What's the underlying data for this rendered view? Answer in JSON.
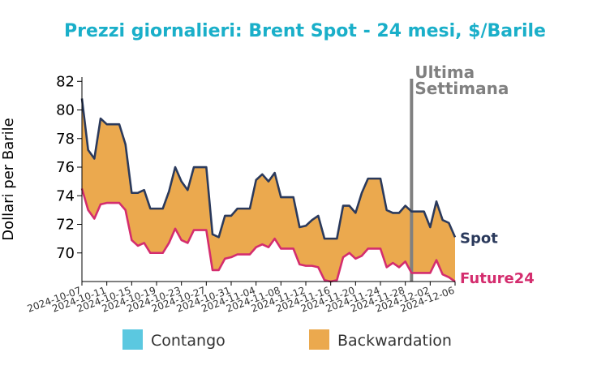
{
  "chart_data": {
    "type": "area",
    "title": "Prezzi giornalieri: Brent Spot - 24 mesi, $/Barile",
    "ylabel": "Dollari per Barile",
    "xlabel": "",
    "ylim": [
      68,
      82.3
    ],
    "yticks": [
      70,
      72,
      74,
      76,
      78,
      80,
      82
    ],
    "xticks": [
      "2024-10-07",
      "2024-10-11",
      "2024-10-15",
      "2024-10-19",
      "2024-10-23",
      "2024-10-27",
      "2024-10-31",
      "2024-11-04",
      "2024-11-08",
      "2024-11-12",
      "2024-11-16",
      "2024-11-20",
      "2024-11-24",
      "2024-11-28",
      "2024-12-02",
      "2024-12-06"
    ],
    "x_start": "2024-10-07",
    "x_end": "2024-12-06",
    "grid": false,
    "colors": {
      "title": "#1aafc9",
      "spot": "#2b3a5c",
      "future": "#d42d6e",
      "contango": "#5bc8e0",
      "backwardation": "#eba94e",
      "annotation_line": "#808080"
    },
    "annotation": {
      "date": "2024-11-29",
      "line1": "Ultima",
      "line2": "Settimana"
    },
    "series": [
      {
        "name": "Spot",
        "points": [
          [
            "2024-10-07",
            80.8
          ],
          [
            "2024-10-08",
            77.2
          ],
          [
            "2024-10-09",
            76.6
          ],
          [
            "2024-10-10",
            79.4
          ],
          [
            "2024-10-11",
            79.0
          ],
          [
            "2024-10-12",
            79.0
          ],
          [
            "2024-10-13",
            79.0
          ],
          [
            "2024-10-14",
            77.6
          ],
          [
            "2024-10-15",
            74.2
          ],
          [
            "2024-10-16",
            74.2
          ],
          [
            "2024-10-17",
            74.4
          ],
          [
            "2024-10-18",
            73.1
          ],
          [
            "2024-10-19",
            73.1
          ],
          [
            "2024-10-20",
            73.1
          ],
          [
            "2024-10-21",
            74.3
          ],
          [
            "2024-10-22",
            76.0
          ],
          [
            "2024-10-23",
            75.0
          ],
          [
            "2024-10-24",
            74.4
          ],
          [
            "2024-10-25",
            76.0
          ],
          [
            "2024-10-26",
            76.0
          ],
          [
            "2024-10-27",
            76.0
          ],
          [
            "2024-10-28",
            71.3
          ],
          [
            "2024-10-29",
            71.1
          ],
          [
            "2024-10-30",
            72.6
          ],
          [
            "2024-10-31",
            72.6
          ],
          [
            "2024-11-01",
            73.1
          ],
          [
            "2024-11-02",
            73.1
          ],
          [
            "2024-11-03",
            73.1
          ],
          [
            "2024-11-04",
            75.1
          ],
          [
            "2024-11-05",
            75.5
          ],
          [
            "2024-11-06",
            75.0
          ],
          [
            "2024-11-07",
            75.6
          ],
          [
            "2024-11-08",
            73.9
          ],
          [
            "2024-11-09",
            73.9
          ],
          [
            "2024-11-10",
            73.9
          ],
          [
            "2024-11-11",
            71.8
          ],
          [
            "2024-11-12",
            71.9
          ],
          [
            "2024-11-13",
            72.3
          ],
          [
            "2024-11-14",
            72.6
          ],
          [
            "2024-11-15",
            71.0
          ],
          [
            "2024-11-16",
            71.0
          ],
          [
            "2024-11-17",
            71.0
          ],
          [
            "2024-11-18",
            73.3
          ],
          [
            "2024-11-19",
            73.3
          ],
          [
            "2024-11-20",
            72.8
          ],
          [
            "2024-11-21",
            74.2
          ],
          [
            "2024-11-22",
            75.2
          ],
          [
            "2024-11-23",
            75.2
          ],
          [
            "2024-11-24",
            75.2
          ],
          [
            "2024-11-25",
            73.0
          ],
          [
            "2024-11-26",
            72.8
          ],
          [
            "2024-11-27",
            72.8
          ],
          [
            "2024-11-28",
            73.3
          ],
          [
            "2024-11-29",
            72.9
          ],
          [
            "2024-11-30",
            72.9
          ],
          [
            "2024-12-01",
            72.9
          ],
          [
            "2024-12-02",
            71.8
          ],
          [
            "2024-12-03",
            73.6
          ],
          [
            "2024-12-04",
            72.3
          ],
          [
            "2024-12-05",
            72.1
          ],
          [
            "2024-12-06",
            71.1
          ]
        ]
      },
      {
        "name": "Future24",
        "points": [
          [
            "2024-10-07",
            74.5
          ],
          [
            "2024-10-08",
            73.0
          ],
          [
            "2024-10-09",
            72.4
          ],
          [
            "2024-10-10",
            73.4
          ],
          [
            "2024-10-11",
            73.5
          ],
          [
            "2024-10-12",
            73.5
          ],
          [
            "2024-10-13",
            73.5
          ],
          [
            "2024-10-14",
            73.0
          ],
          [
            "2024-10-15",
            70.9
          ],
          [
            "2024-10-16",
            70.5
          ],
          [
            "2024-10-17",
            70.7
          ],
          [
            "2024-10-18",
            70.0
          ],
          [
            "2024-10-19",
            70.0
          ],
          [
            "2024-10-20",
            70.0
          ],
          [
            "2024-10-21",
            70.7
          ],
          [
            "2024-10-22",
            71.7
          ],
          [
            "2024-10-23",
            70.9
          ],
          [
            "2024-10-24",
            70.7
          ],
          [
            "2024-10-25",
            71.6
          ],
          [
            "2024-10-26",
            71.6
          ],
          [
            "2024-10-27",
            71.6
          ],
          [
            "2024-10-28",
            68.8
          ],
          [
            "2024-10-29",
            68.8
          ],
          [
            "2024-10-30",
            69.6
          ],
          [
            "2024-10-31",
            69.7
          ],
          [
            "2024-11-01",
            69.9
          ],
          [
            "2024-11-02",
            69.9
          ],
          [
            "2024-11-03",
            69.9
          ],
          [
            "2024-11-04",
            70.4
          ],
          [
            "2024-11-05",
            70.6
          ],
          [
            "2024-11-06",
            70.4
          ],
          [
            "2024-11-07",
            71.0
          ],
          [
            "2024-11-08",
            70.3
          ],
          [
            "2024-11-09",
            70.3
          ],
          [
            "2024-11-10",
            70.3
          ],
          [
            "2024-11-11",
            69.2
          ],
          [
            "2024-11-12",
            69.1
          ],
          [
            "2024-11-13",
            69.1
          ],
          [
            "2024-11-14",
            69.0
          ],
          [
            "2024-11-15",
            68.1
          ],
          [
            "2024-11-16",
            68.0
          ],
          [
            "2024-11-17",
            68.1
          ],
          [
            "2024-11-18",
            69.7
          ],
          [
            "2024-11-19",
            70.0
          ],
          [
            "2024-11-20",
            69.6
          ],
          [
            "2024-11-21",
            69.8
          ],
          [
            "2024-11-22",
            70.3
          ],
          [
            "2024-11-23",
            70.3
          ],
          [
            "2024-11-24",
            70.3
          ],
          [
            "2024-11-25",
            69.0
          ],
          [
            "2024-11-26",
            69.3
          ],
          [
            "2024-11-27",
            69.0
          ],
          [
            "2024-11-28",
            69.4
          ],
          [
            "2024-11-29",
            68.6
          ],
          [
            "2024-11-30",
            68.6
          ],
          [
            "2024-12-01",
            68.6
          ],
          [
            "2024-12-02",
            68.6
          ],
          [
            "2024-12-03",
            69.5
          ],
          [
            "2024-12-04",
            68.5
          ],
          [
            "2024-12-05",
            68.3
          ],
          [
            "2024-12-06",
            68.0
          ]
        ]
      }
    ],
    "legend": {
      "placement": "bottom",
      "items": [
        {
          "label": "Contango",
          "color": "#5bc8e0"
        },
        {
          "label": "Backwardation",
          "color": "#eba94e"
        }
      ]
    },
    "end_labels": {
      "spot": "Spot",
      "future": "Future24"
    }
  }
}
